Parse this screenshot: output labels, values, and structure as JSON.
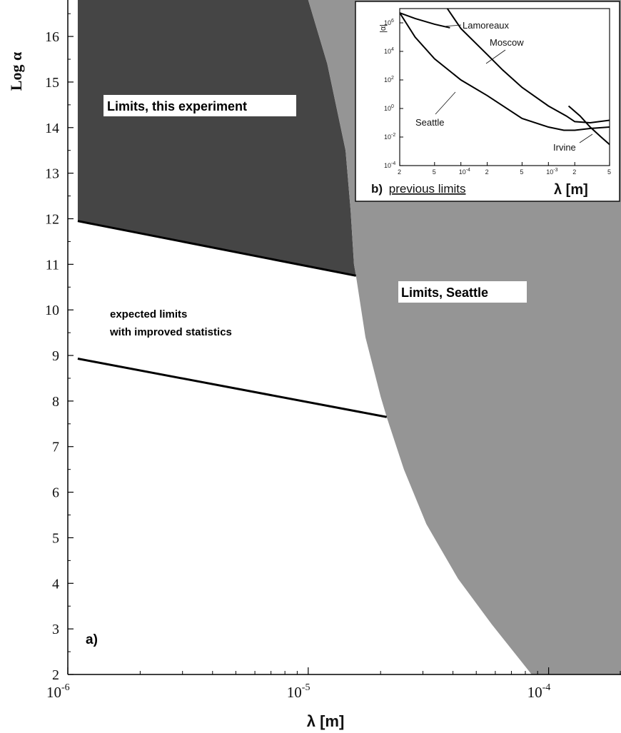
{
  "chart_data": [
    {
      "type": "area",
      "panel_label": "a)",
      "xlabel": "λ [m]",
      "ylabel": "Log α",
      "xscale": "log",
      "xlim": [
        1e-06,
        0.0002
      ],
      "ylim": [
        2,
        16.8
      ],
      "x_ticks": [
        {
          "value": 1e-06,
          "base": "10",
          "exp": "-6"
        },
        {
          "value": 1e-05,
          "base": "10",
          "exp": "-5"
        },
        {
          "value": 0.0001,
          "base": "10",
          "exp": "-4"
        }
      ],
      "y_ticks": [
        2,
        3,
        4,
        5,
        6,
        7,
        8,
        9,
        10,
        11,
        12,
        13,
        14,
        15,
        16
      ],
      "regions": [
        {
          "name": "Limits, this experiment",
          "color": "#454545",
          "boundary_line": [
            [
              1.1e-06,
              11.95
            ],
            [
              1.58e-05,
              10.75
            ]
          ]
        },
        {
          "name": "Limits, Seattle",
          "color": "#959595",
          "boundary": [
            [
              1e-05,
              16.8
            ],
            [
              1.2e-05,
              15.4
            ],
            [
              1.43e-05,
              13.5
            ],
            [
              1.5e-05,
              12.2
            ],
            [
              1.55e-05,
              11.0
            ],
            [
              1.58e-05,
              10.75
            ],
            [
              1.73e-05,
              9.4
            ],
            [
              2e-05,
              8.1
            ],
            [
              2.12e-05,
              7.65
            ],
            [
              2.5e-05,
              6.5
            ],
            [
              3.1e-05,
              5.3
            ],
            [
              4.2e-05,
              4.1
            ],
            [
              5.8e-05,
              3.1
            ],
            [
              8.5e-05,
              2.0
            ]
          ]
        }
      ],
      "lines": [
        {
          "name": "expected limits with improved statistics",
          "points": [
            [
              1.1e-06,
              8.93
            ],
            [
              2.12e-05,
              7.65
            ]
          ]
        }
      ],
      "annotations": [
        {
          "text_line1": "expected limits",
          "text_line2": "with improved statistics"
        }
      ]
    },
    {
      "type": "line",
      "panel_label": "b)",
      "panel_title": "previous limits",
      "xlabel": "λ [m]",
      "ylabel": "|α|",
      "xscale": "log",
      "yscale": "log",
      "xlim": [
        2e-05,
        0.005
      ],
      "ylim": [
        0.0001,
        10000000.0
      ],
      "x_ticks": [
        {
          "value": 2e-05,
          "label": "2",
          "exp": ""
        },
        {
          "value": 5e-05,
          "label": "5",
          "exp": ""
        },
        {
          "value": 0.0001,
          "label": "10",
          "exp": "-4"
        },
        {
          "value": 0.0002,
          "label": "2",
          "exp": ""
        },
        {
          "value": 0.0005,
          "label": "5",
          "exp": ""
        },
        {
          "value": 0.001,
          "label": "10",
          "exp": "-3"
        },
        {
          "value": 0.002,
          "label": "2",
          "exp": ""
        },
        {
          "value": 0.005,
          "label": "5",
          "exp": ""
        }
      ],
      "y_ticks": [
        {
          "value": 0.0001,
          "base": "10",
          "exp": "-4"
        },
        {
          "value": 0.01,
          "base": "10",
          "exp": "-2"
        },
        {
          "value": 1,
          "base": "10",
          "exp": "0"
        },
        {
          "value": 100,
          "base": "10",
          "exp": "2"
        },
        {
          "value": 10000.0,
          "base": "10",
          "exp": "4"
        },
        {
          "value": 1000000.0,
          "base": "10",
          "exp": "6"
        }
      ],
      "series": [
        {
          "name": "Lamoreaux",
          "points": [
            [
              2e-05,
              5000000.0
            ],
            [
              3e-05,
              2000000.0
            ],
            [
              5e-05,
              800000.0
            ],
            [
              7.5e-05,
              450000.0
            ]
          ]
        },
        {
          "name": "Moscow",
          "points": [
            [
              7e-05,
              10000000.0
            ],
            [
              0.0001,
              400000.0
            ],
            [
              0.0002,
              6000.0
            ],
            [
              0.0003,
              500.0
            ],
            [
              0.0005,
              30
            ],
            [
              0.001,
              1.5
            ],
            [
              0.0016,
              0.3
            ],
            [
              0.002,
              0.12
            ],
            [
              0.003,
              0.1
            ],
            [
              0.005,
              0.15
            ]
          ]
        },
        {
          "name": "Seattle",
          "points": [
            [
              2e-05,
              5000000.0
            ],
            [
              3e-05,
              100000.0
            ],
            [
              5e-05,
              3000.0
            ],
            [
              0.0001,
              100.0
            ],
            [
              0.0002,
              8
            ],
            [
              0.0005,
              0.2
            ],
            [
              0.001,
              0.05
            ],
            [
              0.0015,
              0.03
            ],
            [
              0.002,
              0.03
            ],
            [
              0.003,
              0.04
            ],
            [
              0.005,
              0.05
            ]
          ]
        },
        {
          "name": "Irvine",
          "points": [
            [
              0.0017,
              1.5
            ],
            [
              0.0023,
              0.3
            ],
            [
              0.003,
              0.05
            ],
            [
              0.004,
              0.01
            ],
            [
              0.005,
              0.003
            ]
          ]
        }
      ]
    }
  ]
}
